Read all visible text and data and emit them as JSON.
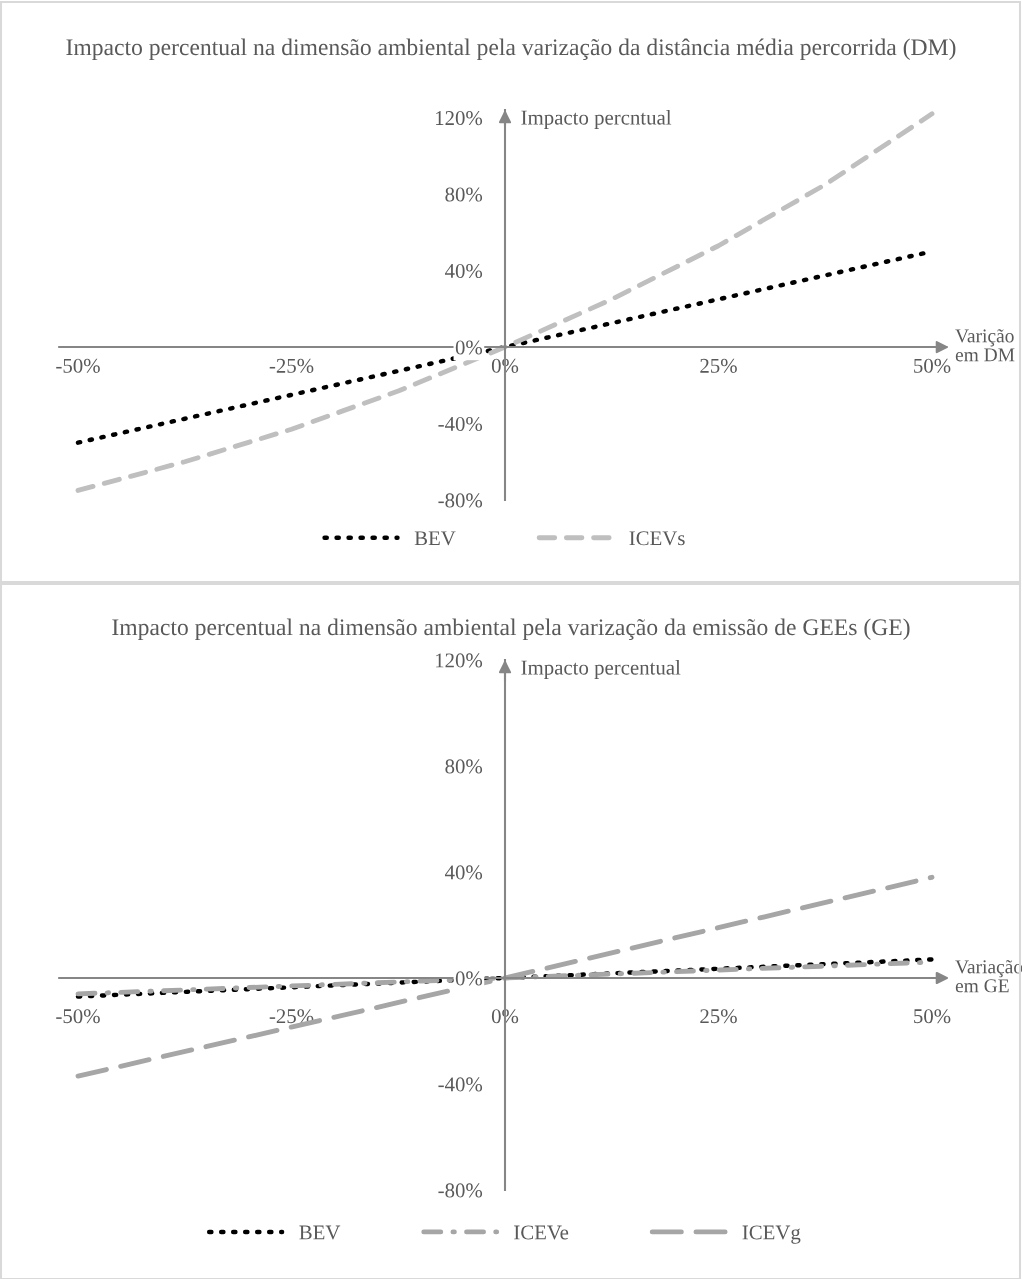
{
  "chart_data": [
    {
      "type": "line",
      "title": "Impacto percentual na dimensão ambiental pela varização da distância média percorrida (DM)",
      "xlabel": "Varição\nem DM",
      "ylabel": "Impacto percntual",
      "x": [
        -50,
        -37.5,
        -25,
        -12.5,
        0,
        12.5,
        25,
        37.5,
        50
      ],
      "series": [
        {
          "name": "BEV",
          "color": "#000000",
          "line_style": "dotted",
          "values": [
            -50,
            -37.5,
            -25,
            -12.5,
            0,
            12.5,
            25,
            37.5,
            50
          ]
        },
        {
          "name": "ICEVs",
          "color": "#bfbfbf",
          "line_style": "dashed",
          "values": [
            -75,
            -60,
            -43,
            -23,
            0,
            25,
            53,
            85,
            122
          ]
        }
      ],
      "ylim": [
        -80,
        124
      ],
      "xticks": [
        {
          "value": -50,
          "label": "-50%"
        },
        {
          "value": -25,
          "label": "-25%"
        },
        {
          "value": 0,
          "label": "0%"
        },
        {
          "value": 25,
          "label": "25%"
        },
        {
          "value": 50,
          "label": "50%"
        }
      ],
      "yticks": [
        {
          "value": -80,
          "label": "-80%"
        },
        {
          "value": -40,
          "label": "-40%"
        },
        {
          "value": 0,
          "label": "0%"
        },
        {
          "value": 40,
          "label": "40%"
        },
        {
          "value": 80,
          "label": "80%"
        },
        {
          "value": 120,
          "label": "120%"
        }
      ],
      "xlim": [
        -50,
        50
      ],
      "grid": false,
      "legend": "bottom"
    },
    {
      "type": "line",
      "title": "Impacto percentual na dimensão ambiental pela varização da emissão de GEEs (GE)",
      "xlabel": "Variação\nem GE",
      "ylabel": "Impacto percentual",
      "x": [
        -50,
        0,
        50
      ],
      "series": [
        {
          "name": "BEV",
          "color": "#000000",
          "line_style": "dotted",
          "values": [
            -7,
            0,
            7
          ]
        },
        {
          "name": "ICEVe",
          "color": "#a6a6a6",
          "line_style": "dashdot",
          "values": [
            -6,
            0,
            6
          ]
        },
        {
          "name": "ICEVg",
          "color": "#a6a6a6",
          "line_style": "longdash",
          "values": [
            -37,
            0,
            38
          ]
        }
      ],
      "ylim": [
        -80,
        120
      ],
      "xticks": [
        {
          "value": -50,
          "label": "-50%"
        },
        {
          "value": -25,
          "label": "-25%"
        },
        {
          "value": 0,
          "label": "0%"
        },
        {
          "value": 25,
          "label": "25%"
        },
        {
          "value": 50,
          "label": "50%"
        }
      ],
      "yticks": [
        {
          "value": -80,
          "label": "-80%"
        },
        {
          "value": -40,
          "label": "-40%"
        },
        {
          "value": 0,
          "label": "0%"
        },
        {
          "value": 40,
          "label": "40%"
        },
        {
          "value": 80,
          "label": "80%"
        },
        {
          "value": 120,
          "label": "120%"
        }
      ],
      "xlim": [
        -50,
        50
      ],
      "grid": false,
      "legend": "bottom"
    }
  ]
}
